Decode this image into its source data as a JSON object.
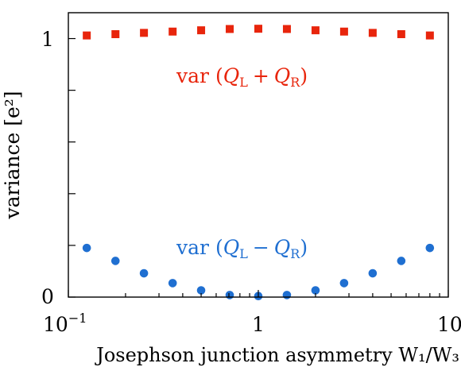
{
  "chart_data": {
    "type": "scatter",
    "xlabel": "Josephson junction asymmetry W₁/W₃",
    "ylabel": "variance [e²]",
    "xscale": "log",
    "xlim": [
      0.1,
      10
    ],
    "ylim": [
      0,
      1.1
    ],
    "xticks": [
      {
        "value": 0.1,
        "label_base": "10",
        "label_exp": "−1"
      },
      {
        "value": 1,
        "label_base": "1",
        "label_exp": ""
      },
      {
        "value": 10,
        "label_base": "10",
        "label_exp": ""
      }
    ],
    "yticks": [
      {
        "value": 0,
        "label": "0"
      },
      {
        "value": 0.2,
        "label": ""
      },
      {
        "value": 0.4,
        "label": ""
      },
      {
        "value": 0.6,
        "label": ""
      },
      {
        "value": 0.8,
        "label": ""
      },
      {
        "value": 1.0,
        "label": "1"
      }
    ],
    "grid": false,
    "series": [
      {
        "name": "var (Q_L + Q_R)",
        "annotation": {
          "prefix": "var",
          "open": "(",
          "q1": "Q",
          "sub1": "L",
          "op": "+",
          "q2": "Q",
          "sub2": "R",
          "close": ")"
        },
        "marker": "square",
        "color": "#e8250c",
        "x": [
          0.125,
          0.177,
          0.25,
          0.354,
          0.5,
          0.707,
          1.0,
          1.414,
          2.0,
          2.828,
          4.0,
          5.657,
          8.0
        ],
        "y": [
          1.012,
          1.017,
          1.022,
          1.027,
          1.032,
          1.037,
          1.038,
          1.037,
          1.032,
          1.027,
          1.022,
          1.017,
          1.012
        ]
      },
      {
        "name": "var (Q_L − Q_R)",
        "annotation": {
          "prefix": "var",
          "open": "(",
          "q1": "Q",
          "sub1": "L",
          "op": "−",
          "q2": "Q",
          "sub2": "R",
          "close": ")"
        },
        "marker": "circle",
        "color": "#1f6fd1",
        "x": [
          0.125,
          0.177,
          0.25,
          0.354,
          0.5,
          0.707,
          1.0,
          1.414,
          2.0,
          2.828,
          4.0,
          5.657,
          8.0
        ],
        "y": [
          0.19,
          0.14,
          0.092,
          0.054,
          0.026,
          0.008,
          0.004,
          0.008,
          0.026,
          0.054,
          0.092,
          0.14,
          0.19
        ]
      }
    ]
  }
}
